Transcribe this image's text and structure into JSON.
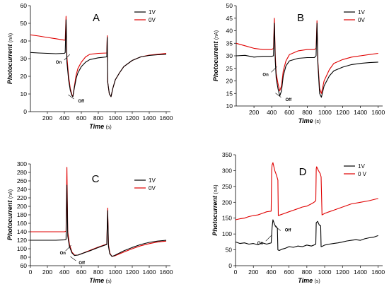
{
  "chart_data": [
    {
      "panel": "A",
      "type": "line",
      "ylabel": "Photocurrent",
      "ylabel_unit": "(nA)",
      "xlabel": "Time",
      "xlabel_unit": "(s)",
      "xlim": [
        0,
        1650
      ],
      "ylim": [
        0,
        60
      ],
      "xticks": [
        200,
        400,
        600,
        800,
        1000,
        1200,
        1400,
        1600
      ],
      "yticks": [
        0,
        10,
        20,
        30,
        40,
        50,
        60
      ],
      "legend": "top-right",
      "annotations": [
        {
          "text": "On",
          "x": 415,
          "y": 30
        },
        {
          "text": "Off",
          "x": 495,
          "y": 8
        }
      ],
      "series": [
        {
          "name": "1V",
          "color": "#000000",
          "x": [
            0,
            100,
            200,
            300,
            400,
            410,
            420,
            430,
            450,
            470,
            490,
            500,
            520,
            540,
            560,
            600,
            650,
            700,
            800,
            900,
            905,
            910,
            930,
            950,
            970,
            1000,
            1050,
            1100,
            1200,
            1300,
            1400,
            1500,
            1600
          ],
          "y": [
            33.5,
            33.2,
            33,
            32.8,
            33,
            33.5,
            52,
            28,
            18,
            12,
            9,
            8.5,
            14,
            19,
            22,
            25.5,
            28,
            29.5,
            30.5,
            31,
            42,
            17,
            10,
            8.5,
            13,
            18,
            22,
            25.5,
            29,
            31,
            31.8,
            32.2,
            32.5
          ]
        },
        {
          "name": "0V",
          "color": "#e00000",
          "x": [
            0,
            100,
            200,
            300,
            400,
            410,
            420,
            430,
            450,
            470,
            490,
            500,
            520,
            540,
            560,
            600,
            650,
            700,
            800,
            900,
            905,
            910,
            930,
            950,
            970,
            1000,
            1050,
            1100,
            1200,
            1300,
            1400,
            1500,
            1600
          ],
          "y": [
            43.5,
            42.8,
            42,
            41.3,
            40.5,
            40.5,
            54,
            31,
            20,
            13,
            9.5,
            8.5,
            15,
            21,
            24.5,
            28,
            31,
            32.5,
            33,
            33.2,
            43,
            17,
            10,
            8.5,
            13,
            18,
            22,
            25.5,
            29,
            31,
            32,
            32.5,
            33
          ]
        }
      ]
    },
    {
      "panel": "B",
      "type": "line",
      "ylabel": "Photocurrent",
      "ylabel_unit": "(nA)",
      "xlabel": "Time",
      "xlabel_unit": "(s)",
      "xlim": [
        0,
        1650
      ],
      "ylim": [
        10,
        50
      ],
      "xticks": [
        200,
        400,
        600,
        800,
        1000,
        1200,
        1400,
        1600
      ],
      "yticks": [
        10,
        15,
        20,
        25,
        30,
        35,
        40,
        45,
        50
      ],
      "legend": "top-right",
      "annotations": [
        {
          "text": "On",
          "x": 410,
          "y": 24
        },
        {
          "text": "Off",
          "x": 490,
          "y": 14
        }
      ],
      "series": [
        {
          "name": "1V",
          "color": "#000000",
          "x": [
            0,
            100,
            200,
            300,
            400,
            420,
            430,
            440,
            450,
            470,
            490,
            510,
            530,
            560,
            600,
            700,
            800,
            880,
            900,
            910,
            920,
            940,
            960,
            990,
            1050,
            1100,
            1200,
            1300,
            1400,
            1500,
            1600
          ],
          "y": [
            30,
            30.2,
            29.5,
            29.8,
            29.8,
            30,
            43,
            28,
            21,
            17,
            14,
            16,
            22,
            26,
            28,
            29,
            29.3,
            29.3,
            30,
            43,
            27,
            15,
            13.5,
            18,
            22,
            24,
            25.5,
            26.5,
            27,
            27.3,
            27.5
          ]
        },
        {
          "name": "0V",
          "color": "#e00000",
          "x": [
            0,
            100,
            200,
            300,
            400,
            420,
            430,
            440,
            450,
            470,
            490,
            510,
            530,
            560,
            600,
            700,
            800,
            880,
            900,
            910,
            920,
            940,
            960,
            990,
            1050,
            1100,
            1200,
            1300,
            1400,
            1500,
            1600
          ],
          "y": [
            35,
            34,
            33,
            32.5,
            32.5,
            33,
            45,
            30,
            23,
            19,
            16,
            18,
            24,
            28,
            30.5,
            32,
            32.5,
            32.5,
            33,
            44,
            28,
            17,
            15,
            20,
            24.5,
            27,
            28.5,
            29.5,
            30,
            30.5,
            31
          ]
        }
      ]
    },
    {
      "panel": "C",
      "type": "line",
      "ylabel": "Photocurrent",
      "ylabel_unit": "(nA)",
      "xlabel": "Time",
      "xlabel_unit": "(s)",
      "xlim": [
        0,
        1650
      ],
      "ylim": [
        60,
        300
      ],
      "xticks": [
        0,
        200,
        400,
        600,
        800,
        1000,
        1200,
        1400,
        1600
      ],
      "yticks": [
        60,
        80,
        100,
        120,
        140,
        160,
        180,
        200,
        220,
        240,
        260,
        280,
        300
      ],
      "legend": "top-right",
      "annotations": [
        {
          "text": "On",
          "x": 430,
          "y": 98
        },
        {
          "text": "Off",
          "x": 520,
          "y": 75
        }
      ],
      "series": [
        {
          "name": "1V",
          "color": "#000000",
          "x": [
            0,
            100,
            200,
            300,
            400,
            420,
            430,
            440,
            460,
            490,
            520,
            560,
            600,
            700,
            800,
            900,
            910,
            920,
            935,
            960,
            990,
            1050,
            1100,
            1200,
            1300,
            1400,
            1500,
            1600
          ],
          "y": [
            120,
            120,
            120,
            120,
            121,
            122,
            250,
            130,
            105,
            90,
            84,
            85,
            88,
            95,
            103,
            110,
            190,
            105,
            88,
            82,
            84,
            90,
            95,
            103,
            110,
            115,
            118,
            120
          ]
        },
        {
          "name": "0V",
          "color": "#e00000",
          "x": [
            0,
            100,
            200,
            300,
            400,
            420,
            430,
            440,
            460,
            490,
            520,
            560,
            600,
            700,
            800,
            900,
            910,
            920,
            935,
            960,
            990,
            1050,
            1100,
            1200,
            1300,
            1400,
            1500,
            1600
          ],
          "y": [
            140,
            140,
            140,
            140,
            140,
            141,
            292,
            140,
            110,
            92,
            85,
            85,
            88,
            96,
            104,
            111,
            196,
            110,
            90,
            82,
            83,
            88,
            92,
            100,
            107,
            112,
            116,
            118
          ]
        }
      ]
    },
    {
      "panel": "D",
      "type": "line",
      "ylabel": "Photocurrent",
      "ylabel_unit": "(nA)",
      "xlabel": "Time",
      "xlabel_unit": "(s)",
      "xlim": [
        0,
        1650
      ],
      "ylim": [
        0,
        350
      ],
      "xticks": [
        0,
        200,
        400,
        600,
        800,
        1000,
        1200,
        1400,
        1600
      ],
      "yticks": [
        0,
        50,
        100,
        150,
        200,
        250,
        300,
        350
      ],
      "legend": "top-right",
      "annotations": [
        {
          "text": "On",
          "x": 355,
          "y": 82
        },
        {
          "text": "Off",
          "x": 490,
          "y": 115
        }
      ],
      "series": [
        {
          "name": "1V",
          "color": "#000000",
          "x": [
            0,
            50,
            100,
            150,
            200,
            250,
            300,
            350,
            400,
            410,
            420,
            440,
            460,
            470,
            475,
            490,
            520,
            560,
            600,
            650,
            700,
            750,
            800,
            850,
            880,
            900,
            905,
            920,
            940,
            955,
            960,
            980,
            1000,
            1050,
            1100,
            1150,
            1200,
            1250,
            1300,
            1350,
            1400,
            1450,
            1500,
            1550,
            1600
          ],
          "y": [
            75,
            70,
            72,
            68,
            70,
            66,
            72,
            68,
            72,
            120,
            145,
            128,
            122,
            118,
            50,
            48,
            52,
            55,
            60,
            58,
            62,
            60,
            65,
            62,
            65,
            68,
            135,
            140,
            128,
            126,
            60,
            62,
            65,
            68,
            70,
            72,
            75,
            78,
            80,
            82,
            80,
            85,
            88,
            90,
            95
          ]
        },
        {
          "name": "0 V",
          "color": "#e00000",
          "x": [
            0,
            50,
            100,
            150,
            200,
            250,
            300,
            350,
            400,
            405,
            410,
            420,
            440,
            460,
            475,
            480,
            500,
            550,
            600,
            650,
            700,
            750,
            800,
            850,
            880,
            900,
            905,
            910,
            930,
            950,
            960,
            970,
            1000,
            1050,
            1100,
            1200,
            1300,
            1400,
            1500,
            1600
          ],
          "y": [
            145,
            148,
            150,
            155,
            158,
            160,
            165,
            170,
            172,
            300,
            318,
            325,
            300,
            285,
            270,
            158,
            160,
            165,
            170,
            175,
            180,
            185,
            188,
            195,
            200,
            205,
            305,
            312,
            300,
            290,
            280,
            160,
            165,
            170,
            175,
            185,
            195,
            200,
            205,
            212
          ]
        }
      ]
    }
  ]
}
